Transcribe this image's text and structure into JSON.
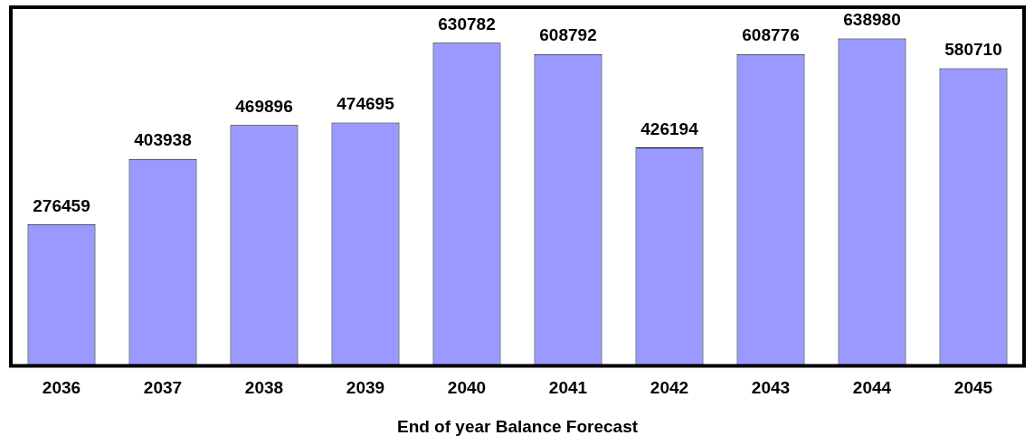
{
  "chart_data": {
    "type": "bar",
    "xlabel": "End of year Balance Forecast",
    "categories": [
      "2036",
      "2037",
      "2038",
      "2039",
      "2040",
      "2041",
      "2042",
      "2043",
      "2044",
      "2045"
    ],
    "values": [
      276459,
      403938,
      469896,
      474695,
      630782,
      608792,
      426194,
      608776,
      638980,
      580710
    ],
    "color": "#9999ff",
    "data_labels": true,
    "grid": false,
    "legend": false,
    "tick_labels": "x"
  }
}
